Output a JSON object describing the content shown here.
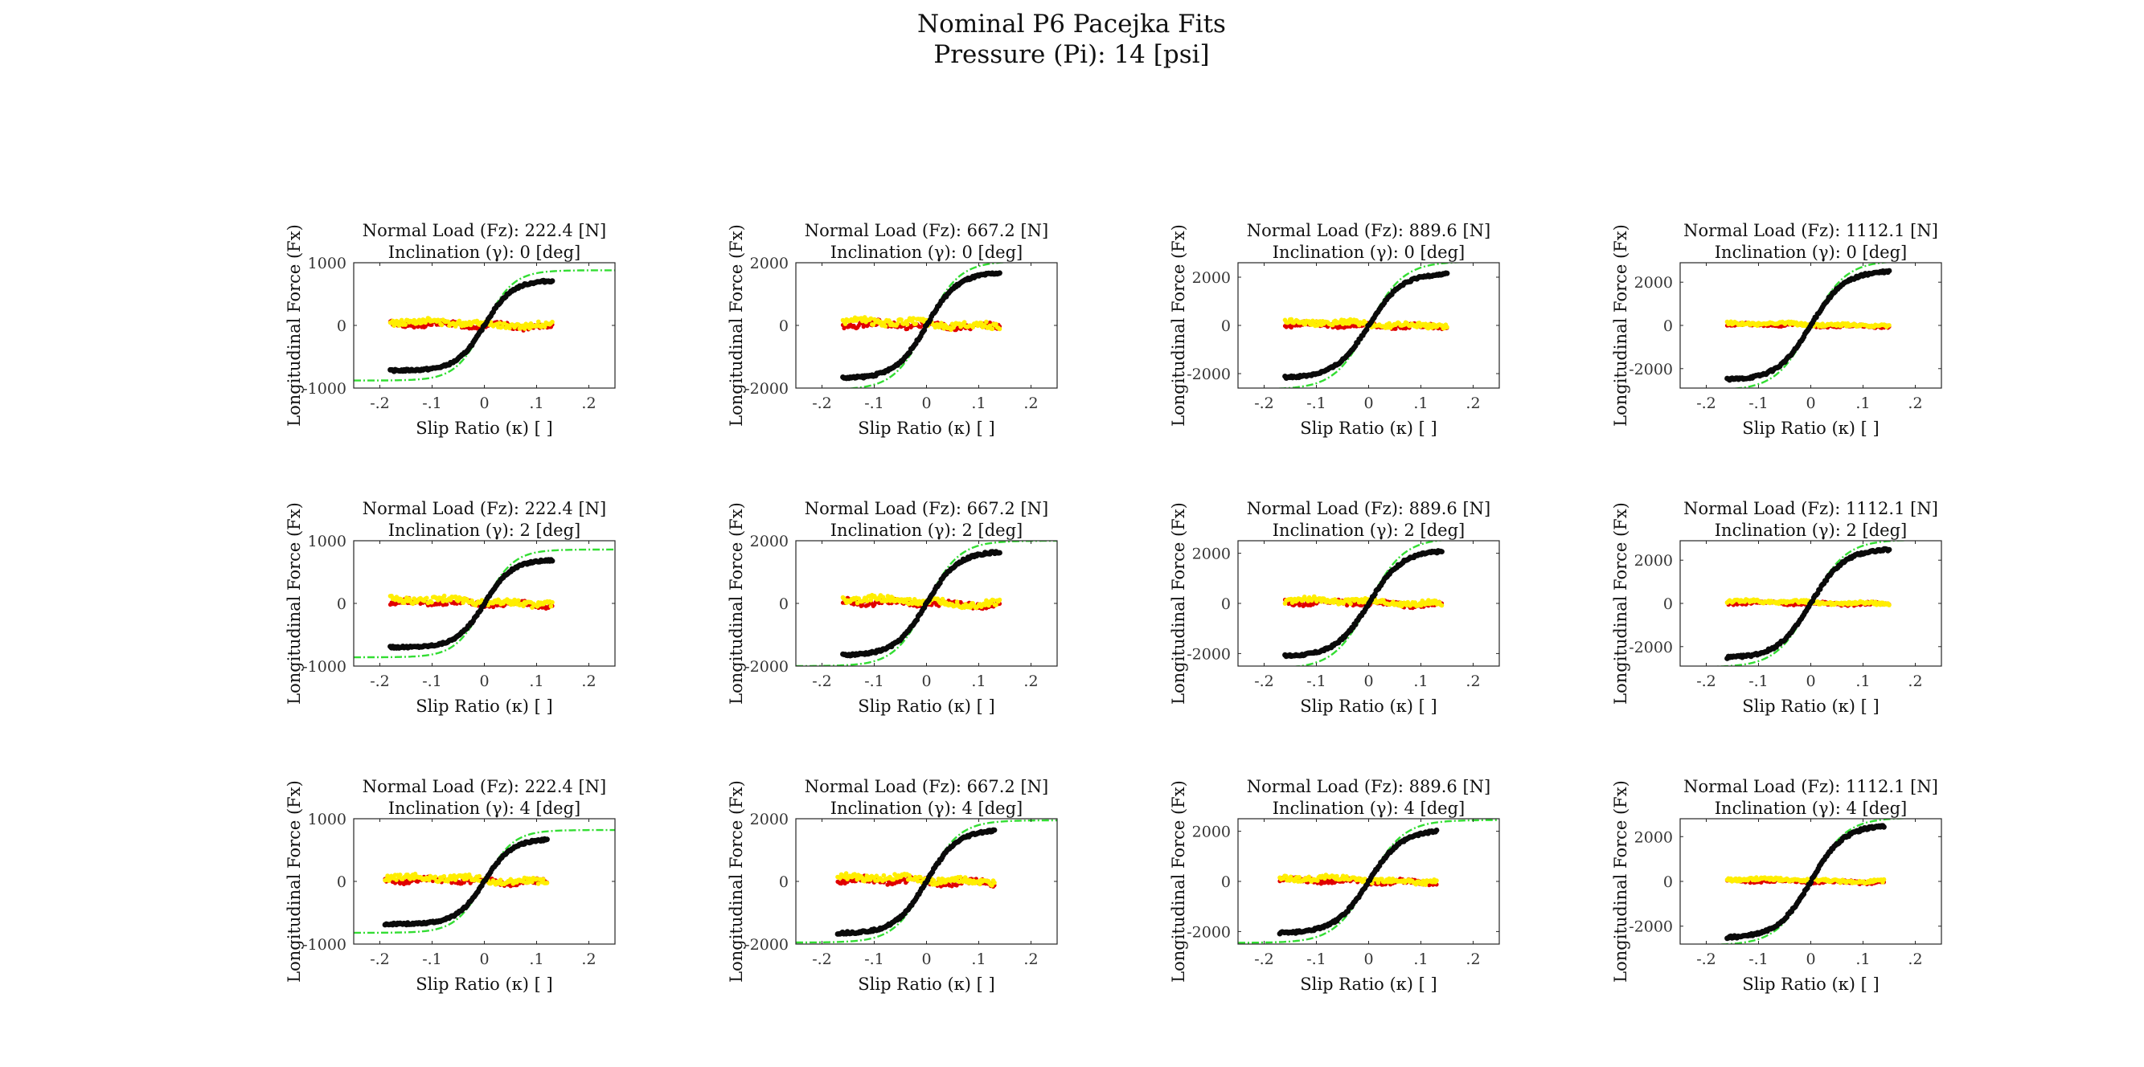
{
  "figure": {
    "title_line1": "Nominal P6 Pacejka Fits",
    "title_line2": "Pressure (Pi): 14 [psi]"
  },
  "colors": {
    "fit": "#33dd33",
    "data_black": "#0a0a0a",
    "data_red": "#e00000",
    "data_yellow": "#ffee00",
    "axes": "#262626"
  },
  "chart_data": [
    {
      "type": "scatter",
      "row": 0,
      "col": 0,
      "title1": "Normal Load (Fz): 222.4 [N]",
      "title2": "Inclination (γ): 0 [deg]",
      "xlabel": "Slip Ratio (κ) [ ]",
      "ylabel": "Longitudinal Force (Fx)",
      "xlim": [
        -0.25,
        0.25
      ],
      "ylim": [
        -1000,
        1000
      ],
      "xticks": [
        -0.2,
        -0.1,
        0,
        0.1,
        0.2
      ],
      "yticks": [
        -1000,
        0,
        1000
      ],
      "data_x_range": [
        -0.18,
        0.13
      ],
      "fx_peak": 720,
      "fit_asymptote": 880,
      "fit_stiffness": 18,
      "fy_amplitude": 90
    },
    {
      "type": "scatter",
      "row": 0,
      "col": 1,
      "title1": "Normal Load (Fz): 667.2 [N]",
      "title2": "Inclination (γ): 0 [deg]",
      "xlabel": "Slip Ratio (κ) [ ]",
      "ylabel": "Longitudinal Force (Fx)",
      "xlim": [
        -0.25,
        0.25
      ],
      "ylim": [
        -2000,
        2000
      ],
      "xticks": [
        -0.2,
        -0.1,
        0,
        0.1,
        0.2
      ],
      "yticks": [
        -2000,
        0,
        2000
      ],
      "data_x_range": [
        -0.16,
        0.14
      ],
      "fx_peak": 1680,
      "fit_asymptote": 2050,
      "fit_stiffness": 16,
      "fy_amplitude": 200
    },
    {
      "type": "scatter",
      "row": 0,
      "col": 2,
      "title1": "Normal Load (Fz): 889.6 [N]",
      "title2": "Inclination (γ): 0 [deg]",
      "xlabel": "Slip Ratio (κ) [ ]",
      "ylabel": "Longitudinal Force (Fx)",
      "xlim": [
        -0.25,
        0.25
      ],
      "ylim": [
        -2600,
        2600
      ],
      "xticks": [
        -0.2,
        -0.1,
        0,
        0.1,
        0.2
      ],
      "yticks": [
        -2000,
        0,
        2000
      ],
      "data_x_range": [
        -0.16,
        0.15
      ],
      "fx_peak": 2150,
      "fit_asymptote": 2650,
      "fit_stiffness": 15,
      "fy_amplitude": 200
    },
    {
      "type": "scatter",
      "row": 0,
      "col": 3,
      "title1": "Normal Load (Fz): 1112.1 [N]",
      "title2": "Inclination (γ): 0 [deg]",
      "xlabel": "Slip Ratio (κ) [ ]",
      "ylabel": "Longitudinal Force (Fx)",
      "xlim": [
        -0.25,
        0.25
      ],
      "ylim": [
        -2900,
        2900
      ],
      "xticks": [
        -0.2,
        -0.1,
        0,
        0.1,
        0.2
      ],
      "yticks": [
        -2000,
        0,
        2000
      ],
      "data_x_range": [
        -0.16,
        0.15
      ],
      "fx_peak": 2500,
      "fit_asymptote": 3000,
      "fit_stiffness": 15,
      "fy_amplitude": 140
    },
    {
      "type": "scatter",
      "row": 1,
      "col": 0,
      "title1": "Normal Load (Fz): 222.4 [N]",
      "title2": "Inclination (γ): 2 [deg]",
      "xlabel": "Slip Ratio (κ) [ ]",
      "ylabel": "Longitudinal Force (Fx)",
      "xlim": [
        -0.25,
        0.25
      ],
      "ylim": [
        -1000,
        1000
      ],
      "xticks": [
        -0.2,
        -0.1,
        0,
        0.1,
        0.2
      ],
      "yticks": [
        -1000,
        0,
        1000
      ],
      "data_x_range": [
        -0.18,
        0.13
      ],
      "fx_peak": 700,
      "fit_asymptote": 860,
      "fit_stiffness": 18,
      "fy_amplitude": 90
    },
    {
      "type": "scatter",
      "row": 1,
      "col": 1,
      "title1": "Normal Load (Fz): 667.2 [N]",
      "title2": "Inclination (γ): 2 [deg]",
      "xlabel": "Slip Ratio (κ) [ ]",
      "ylabel": "Longitudinal Force (Fx)",
      "xlim": [
        -0.25,
        0.25
      ],
      "ylim": [
        -2000,
        2000
      ],
      "xticks": [
        -0.2,
        -0.1,
        0,
        0.1,
        0.2
      ],
      "yticks": [
        -2000,
        0,
        2000
      ],
      "data_x_range": [
        -0.16,
        0.14
      ],
      "fx_peak": 1650,
      "fit_asymptote": 2000,
      "fit_stiffness": 16,
      "fy_amplitude": 200
    },
    {
      "type": "scatter",
      "row": 1,
      "col": 2,
      "title1": "Normal Load (Fz): 889.6 [N]",
      "title2": "Inclination (γ): 2 [deg]",
      "xlabel": "Slip Ratio (κ) [ ]",
      "ylabel": "Longitudinal Force (Fx)",
      "xlim": [
        -0.25,
        0.25
      ],
      "ylim": [
        -2500,
        2500
      ],
      "xticks": [
        -0.2,
        -0.1,
        0,
        0.1,
        0.2
      ],
      "yticks": [
        -2000,
        0,
        2000
      ],
      "data_x_range": [
        -0.16,
        0.14
      ],
      "fx_peak": 2100,
      "fit_asymptote": 2600,
      "fit_stiffness": 15,
      "fy_amplitude": 200
    },
    {
      "type": "scatter",
      "row": 1,
      "col": 3,
      "title1": "Normal Load (Fz): 1112.1 [N]",
      "title2": "Inclination (γ): 2 [deg]",
      "xlabel": "Slip Ratio (κ) [ ]",
      "ylabel": "Longitudinal Force (Fx)",
      "xlim": [
        -0.25,
        0.25
      ],
      "ylim": [
        -2900,
        2900
      ],
      "xticks": [
        -0.2,
        -0.1,
        0,
        0.1,
        0.2
      ],
      "yticks": [
        -2000,
        0,
        2000
      ],
      "data_x_range": [
        -0.16,
        0.15
      ],
      "fx_peak": 2500,
      "fit_asymptote": 2950,
      "fit_stiffness": 15,
      "fy_amplitude": 140
    },
    {
      "type": "scatter",
      "row": 2,
      "col": 0,
      "title1": "Normal Load (Fz): 222.4 [N]",
      "title2": "Inclination (γ): 4 [deg]",
      "xlabel": "Slip Ratio (κ) [ ]",
      "ylabel": "Longitudinal Force (Fx)",
      "xlim": [
        -0.25,
        0.25
      ],
      "ylim": [
        -1000,
        1000
      ],
      "xticks": [
        -0.2,
        -0.1,
        0,
        0.1,
        0.2
      ],
      "yticks": [
        -1000,
        0,
        1000
      ],
      "data_x_range": [
        -0.19,
        0.12
      ],
      "fx_peak": 680,
      "fit_asymptote": 820,
      "fit_stiffness": 18,
      "fy_amplitude": 90
    },
    {
      "type": "scatter",
      "row": 2,
      "col": 1,
      "title1": "Normal Load (Fz): 667.2 [N]",
      "title2": "Inclination (γ): 4 [deg]",
      "xlabel": "Slip Ratio (κ) [ ]",
      "ylabel": "Longitudinal Force (Fx)",
      "xlim": [
        -0.25,
        0.25
      ],
      "ylim": [
        -2000,
        2000
      ],
      "xticks": [
        -0.2,
        -0.1,
        0,
        0.1,
        0.2
      ],
      "yticks": [
        -2000,
        0,
        2000
      ],
      "data_x_range": [
        -0.17,
        0.13
      ],
      "fx_peak": 1650,
      "fit_asymptote": 1950,
      "fit_stiffness": 16,
      "fy_amplitude": 200
    },
    {
      "type": "scatter",
      "row": 2,
      "col": 2,
      "title1": "Normal Load (Fz): 889.6 [N]",
      "title2": "Inclination (γ): 4 [deg]",
      "xlabel": "Slip Ratio (κ) [ ]",
      "ylabel": "Longitudinal Force (Fx)",
      "xlim": [
        -0.25,
        0.25
      ],
      "ylim": [
        -2500,
        2500
      ],
      "xticks": [
        -0.2,
        -0.1,
        0,
        0.1,
        0.2
      ],
      "yticks": [
        -2000,
        0,
        2000
      ],
      "data_x_range": [
        -0.17,
        0.13
      ],
      "fx_peak": 2050,
      "fit_asymptote": 2450,
      "fit_stiffness": 15,
      "fy_amplitude": 200
    },
    {
      "type": "scatter",
      "row": 2,
      "col": 3,
      "title1": "Normal Load (Fz): 1112.1 [N]",
      "title2": "Inclination (γ): 4 [deg]",
      "xlabel": "Slip Ratio (κ) [ ]",
      "ylabel": "Longitudinal Force (Fx)",
      "xlim": [
        -0.25,
        0.25
      ],
      "ylim": [
        -2800,
        2800
      ],
      "xticks": [
        -0.2,
        -0.1,
        0,
        0.1,
        0.2
      ],
      "yticks": [
        -2000,
        0,
        2000
      ],
      "data_x_range": [
        -0.16,
        0.14
      ],
      "fx_peak": 2500,
      "fit_asymptote": 2850,
      "fit_stiffness": 15,
      "fy_amplitude": 140
    }
  ]
}
